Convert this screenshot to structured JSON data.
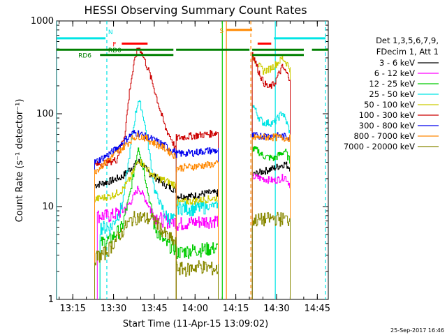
{
  "chart_data": {
    "type": "line",
    "title": "HESSI Observing Summary Count Rates",
    "xlabel": "Start Time (11-Apr-15 13:09:02)",
    "ylabel": "Count Rate (s⁻¹ detector⁻¹)",
    "yscale": "log",
    "ylim": [
      1,
      1000
    ],
    "xlim_minutes_after_1309": [
      0,
      100
    ],
    "x_ticks": [
      "13:15",
      "13:30",
      "13:45",
      "14:00",
      "14:15",
      "14:30",
      "14:45"
    ],
    "y_ticks": [
      "1",
      "10",
      "100",
      "1000"
    ],
    "legend_header": [
      "Det 1,3,5,6,7,9,",
      "FDecim 1, Att 1"
    ],
    "footer_date": "25-Sep-2017 16:46",
    "segments_minutes_after_1309": [
      [
        14,
        44
      ],
      [
        44,
        59.5
      ],
      [
        72,
        86
      ]
    ],
    "series": [
      {
        "name": "3 - 6 keV",
        "color": "#000000",
        "seg": [
          [
            [
              14,
              17
            ],
            [
              20,
              19
            ],
            [
              24,
              21
            ],
            [
              26,
              24
            ],
            [
              28,
              27
            ],
            [
              30,
              31
            ],
            [
              32,
              27
            ],
            [
              34,
              23
            ],
            [
              36,
              21
            ],
            [
              38,
              19
            ],
            [
              40,
              17
            ],
            [
              44,
              15
            ]
          ],
          [
            [
              44,
              13
            ],
            [
              50,
              13
            ],
            [
              55,
              14
            ],
            [
              59.5,
              14
            ]
          ],
          [
            [
              72,
              22
            ],
            [
              76,
              24
            ],
            [
              80,
              26
            ],
            [
              84,
              29
            ],
            [
              86,
              26
            ]
          ]
        ]
      },
      {
        "name": "6 - 12 keV",
        "color": "#ff00ff",
        "seg": [
          [
            [
              15,
              8
            ],
            [
              20,
              8
            ],
            [
              24,
              9
            ],
            [
              27,
              11
            ],
            [
              29,
              14
            ],
            [
              30,
              16
            ],
            [
              32,
              13
            ],
            [
              34,
              10
            ],
            [
              36,
              8
            ],
            [
              40,
              7
            ],
            [
              44,
              7
            ]
          ],
          [
            [
              44,
              6.5
            ],
            [
              50,
              6.8
            ],
            [
              55,
              7
            ],
            [
              59.5,
              7.2
            ]
          ],
          [
            [
              72,
              21
            ],
            [
              76,
              20
            ],
            [
              80,
              19
            ],
            [
              84,
              21
            ],
            [
              86,
              17
            ]
          ]
        ]
      },
      {
        "name": "12 - 25 keV",
        "color": "#00cc00",
        "seg": [
          [
            [
              16,
              4
            ],
            [
              20,
              4.5
            ],
            [
              24,
              6
            ],
            [
              27,
              14
            ],
            [
              29,
              30
            ],
            [
              30,
              45
            ],
            [
              32,
              25
            ],
            [
              34,
              12
            ],
            [
              36,
              6
            ],
            [
              40,
              4
            ],
            [
              44,
              3.5
            ]
          ],
          [
            [
              44,
              3.2
            ],
            [
              50,
              3.4
            ],
            [
              55,
              3.5
            ],
            [
              59.5,
              3.6
            ]
          ],
          [
            [
              72,
              42
            ],
            [
              74,
              40
            ],
            [
              76,
              35
            ],
            [
              80,
              33
            ],
            [
              84,
              40
            ],
            [
              86,
              30
            ]
          ]
        ]
      },
      {
        "name": "25 - 50 keV",
        "color": "#00e5e5",
        "seg": [
          [
            [
              16,
              6
            ],
            [
              20,
              6
            ],
            [
              24,
              10
            ],
            [
              27,
              40
            ],
            [
              29,
              100
            ],
            [
              30,
              140
            ],
            [
              31,
              120
            ],
            [
              32,
              90
            ],
            [
              34,
              40
            ],
            [
              36,
              15
            ],
            [
              40,
              8
            ],
            [
              44,
              7
            ]
          ],
          [
            [
              44,
              10
            ],
            [
              50,
              9.5
            ],
            [
              55,
              10
            ],
            [
              59.5,
              10.5
            ]
          ],
          [
            [
              72,
              130
            ],
            [
              74,
              95
            ],
            [
              76,
              80
            ],
            [
              78,
              80
            ],
            [
              80,
              80
            ],
            [
              82,
              95
            ],
            [
              83,
              105
            ],
            [
              85,
              75
            ],
            [
              86,
              60
            ]
          ]
        ]
      },
      {
        "name": "50 - 100 keV",
        "color": "#cccc00",
        "seg": [
          [
            [
              14,
              12
            ],
            [
              20,
              13
            ],
            [
              24,
              15
            ],
            [
              27,
              20
            ],
            [
              29,
              27
            ],
            [
              30,
              32
            ],
            [
              32,
              28
            ],
            [
              34,
              24
            ],
            [
              36,
              21
            ],
            [
              40,
              19
            ],
            [
              44,
              17
            ]
          ],
          [
            [
              44,
              11
            ],
            [
              50,
              11.5
            ],
            [
              55,
              12
            ],
            [
              59.5,
              12.5
            ]
          ],
          [
            [
              72,
              420
            ],
            [
              74,
              340
            ],
            [
              76,
              290
            ],
            [
              78,
              300
            ],
            [
              80,
              330
            ],
            [
              82,
              370
            ],
            [
              83,
              400
            ],
            [
              85,
              340
            ],
            [
              86,
              300
            ]
          ]
        ]
      },
      {
        "name": "100 - 300 keV",
        "color": "#cc0000",
        "seg": [
          [
            [
              14,
              28
            ],
            [
              18,
              30
            ],
            [
              22,
              32
            ],
            [
              25,
              60
            ],
            [
              27,
              200
            ],
            [
              29,
              420
            ],
            [
              30,
              520
            ],
            [
              31,
              480
            ],
            [
              32,
              400
            ],
            [
              34,
              280
            ],
            [
              36,
              180
            ],
            [
              38,
              110
            ],
            [
              40,
              70
            ],
            [
              42,
              55
            ],
            [
              44,
              40
            ]
          ],
          [
            [
              44,
              55
            ],
            [
              50,
              58
            ],
            [
              55,
              60
            ],
            [
              59.5,
              63
            ]
          ],
          [
            [
              72,
              460
            ],
            [
              74,
              300
            ],
            [
              76,
              220
            ],
            [
              78,
              190
            ],
            [
              80,
              210
            ],
            [
              82,
              280
            ],
            [
              83,
              320
            ],
            [
              85,
              260
            ],
            [
              86,
              240
            ]
          ]
        ]
      },
      {
        "name": "300 - 800 keV",
        "color": "#0000ee",
        "seg": [
          [
            [
              14,
              30
            ],
            [
              18,
              35
            ],
            [
              22,
              42
            ],
            [
              26,
              55
            ],
            [
              28,
              62
            ],
            [
              30,
              62
            ],
            [
              32,
              58
            ],
            [
              34,
              55
            ],
            [
              36,
              52
            ],
            [
              40,
              45
            ],
            [
              44,
              38
            ]
          ],
          [
            [
              44,
              37
            ],
            [
              50,
              38
            ],
            [
              55,
              40
            ],
            [
              59.5,
              40
            ]
          ],
          [
            [
              72,
              58
            ],
            [
              76,
              58
            ],
            [
              80,
              58
            ],
            [
              84,
              57
            ],
            [
              86,
              56
            ]
          ]
        ]
      },
      {
        "name": "800 - 7000 keV",
        "color": "#ff8800",
        "seg": [
          [
            [
              14,
              24
            ],
            [
              18,
              30
            ],
            [
              22,
              38
            ],
            [
              26,
              48
            ],
            [
              28,
              55
            ],
            [
              30,
              58
            ],
            [
              32,
              56
            ],
            [
              34,
              52
            ],
            [
              36,
              48
            ],
            [
              40,
              42
            ],
            [
              44,
              34
            ]
          ],
          [
            [
              44,
              26
            ],
            [
              50,
              27
            ],
            [
              55,
              28
            ],
            [
              59.5,
              29
            ]
          ],
          [
            [
              72,
              55
            ],
            [
              76,
              56
            ],
            [
              80,
              56
            ],
            [
              84,
              55
            ],
            [
              86,
              55
            ]
          ]
        ]
      },
      {
        "name": "7000 - 20000 keV",
        "color": "#888800",
        "seg": [
          [
            [
              14,
              2.8
            ],
            [
              18,
              3.2
            ],
            [
              22,
              4.5
            ],
            [
              26,
              6.5
            ],
            [
              28,
              7.5
            ],
            [
              30,
              7.8
            ],
            [
              32,
              7.6
            ],
            [
              34,
              7.4
            ],
            [
              36,
              7.2
            ],
            [
              40,
              5
            ],
            [
              44,
              4
            ]
          ],
          [
            [
              44,
              2.2
            ],
            [
              48,
              2.1
            ],
            [
              52,
              2.3
            ],
            [
              56,
              2.2
            ],
            [
              59.5,
              2.1
            ]
          ],
          [
            [
              72,
              7.2
            ],
            [
              76,
              7.3
            ],
            [
              80,
              7.5
            ],
            [
              84,
              7.4
            ],
            [
              86,
              7.2
            ]
          ]
        ]
      }
    ],
    "flag_labels": {
      "rd0": "RD0",
      "rd6": "RD6",
      "n": "N",
      "f": "F",
      "s": "S"
    },
    "flags": [
      {
        "key": "n",
        "color": "#00e5e5",
        "y": 650,
        "spans": [
          [
            0,
            18
          ],
          [
            80,
            99
          ]
        ]
      },
      {
        "key": "f",
        "color": "#ff0000",
        "y": 570,
        "spans": [
          [
            24,
            33.5
          ],
          [
            74,
            79
          ]
        ]
      },
      {
        "key": "s",
        "color": "#ff8800",
        "y": 800,
        "spans": [
          [
            62.5,
            72
          ]
        ]
      },
      {
        "key": "rd0",
        "color": "#008000",
        "y": 490,
        "spans": [
          [
            0,
            43
          ],
          [
            44,
            71
          ],
          [
            72,
            91
          ],
          [
            94,
            100
          ]
        ]
      },
      {
        "key": "rd6",
        "color": "#008000",
        "y": 430,
        "spans": [
          [
            16,
            43
          ],
          [
            72,
            91
          ]
        ]
      }
    ],
    "vertical_markers_minutes_after_1309": [
      {
        "t": 0,
        "color": "#00e5e5",
        "dash": false
      },
      {
        "t": 18.5,
        "color": "#00e5e5",
        "dash": true
      },
      {
        "t": 61,
        "color": "#00cc00",
        "dash": false
      },
      {
        "t": 62.5,
        "color": "#ff8800",
        "dash": false
      },
      {
        "t": 71.5,
        "color": "#ff8800",
        "dash": true
      },
      {
        "t": 80.5,
        "color": "#00e5e5",
        "dash": false
      },
      {
        "t": 99,
        "color": "#00e5e5",
        "dash": true
      }
    ]
  }
}
